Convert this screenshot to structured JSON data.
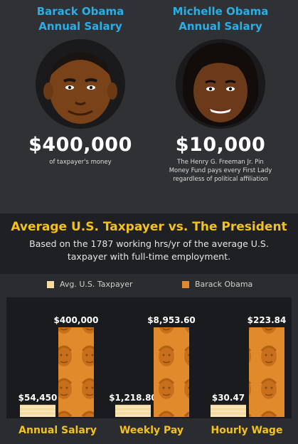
{
  "people": {
    "left": {
      "name_line1": "Barack Obama",
      "name_line2": "Annual Salary",
      "salary": "$400,000",
      "note": "of taxpayer's money"
    },
    "right": {
      "name_line1": "Michelle Obama",
      "name_line2": "Annual Salary",
      "salary": "$10,000",
      "note_line1": "The Henry G. Freeman Jr. Pin",
      "note_line2": "Money Fund pays every First Lady",
      "note_line3": "regardless of political affiliation"
    }
  },
  "headline": "Average U.S. Taxpayer vs. The President",
  "subtitle_line1": "Based on the 1787 working hrs/yr of the average U.S.",
  "subtitle_line2": "taxpayer with full-time employment.",
  "colors": {
    "accent_blue": "#29aee6",
    "accent_yellow": "#f4c21b",
    "taxpayer_bar": "#f6dca0",
    "obama_bar": "#e08a2c"
  },
  "chart_data": {
    "type": "bar",
    "categories": [
      "Annual Salary",
      "Weekly Pay",
      "Hourly Wage"
    ],
    "series": [
      {
        "name": "Avg. U.S. Taxpayer",
        "values": [
          54450,
          1218.8,
          30.47
        ],
        "labels": [
          "$54,450",
          "$1,218.80",
          "$30.47"
        ]
      },
      {
        "name": "Barack Obama",
        "values": [
          400000,
          8953.6,
          223.84
        ],
        "labels": [
          "$400,000",
          "$8,953.60",
          "$223.84"
        ]
      }
    ],
    "legend": "top"
  }
}
